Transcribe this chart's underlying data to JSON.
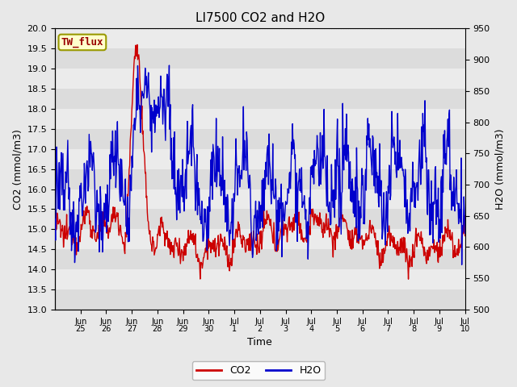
{
  "title": "LI7500 CO2 and H2O",
  "xlabel": "Time",
  "ylabel_left": "CO2 (mmol/m3)",
  "ylabel_right": "H2O (mmol/m3)",
  "co2_ylim": [
    13.0,
    20.0
  ],
  "h2o_ylim": [
    500,
    950
  ],
  "co2_color": "#cc0000",
  "h2o_color": "#0000cc",
  "fig_bg_color": "#e8e8e8",
  "plot_bg_color": "#f0f0f0",
  "band_color_dark": "#dcdcdc",
  "band_color_light": "#ebebeb",
  "legend_co2": "CO2",
  "legend_h2o": "H2O",
  "annotation_text": "TW_flux",
  "annotation_bg": "#ffffcc",
  "annotation_border": "#999900",
  "title_fontsize": 11,
  "label_fontsize": 9,
  "tick_fontsize": 8,
  "legend_fontsize": 9,
  "line_width": 1.0
}
